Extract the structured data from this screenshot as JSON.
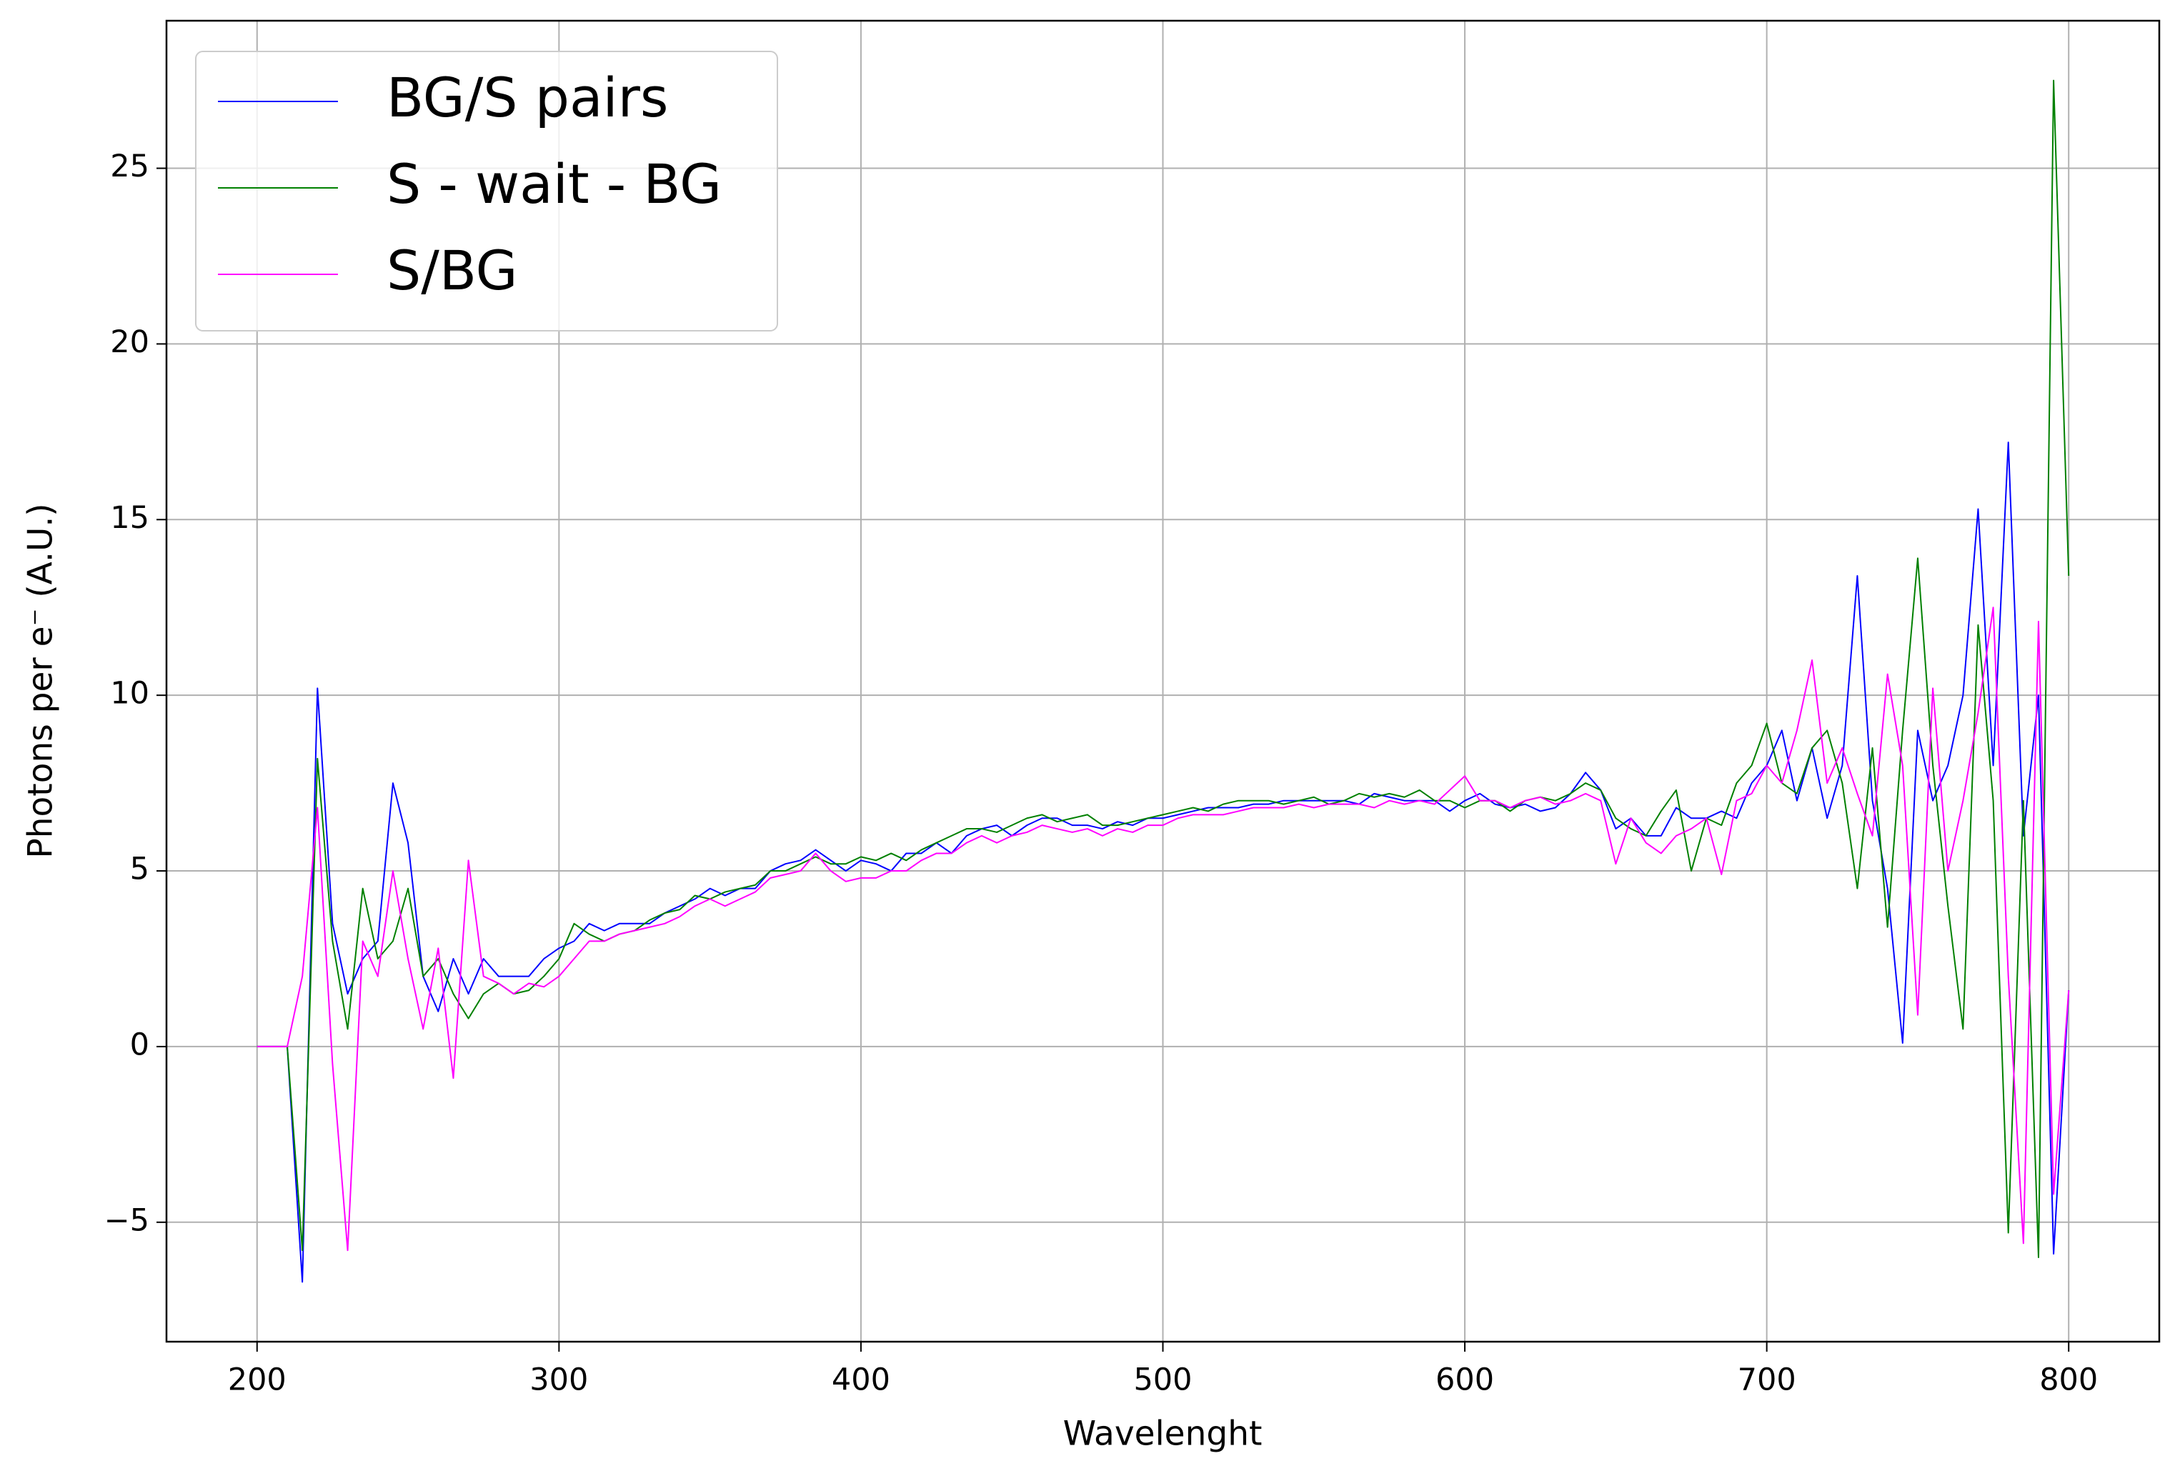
{
  "chart_data": {
    "type": "line",
    "xlabel": "Wavelenght",
    "ylabel": "Photons per e⁻  (A.U.)",
    "xlim": [
      170,
      830
    ],
    "ylim": [
      -8.4,
      29.2
    ],
    "xticks": [
      200,
      300,
      400,
      500,
      600,
      700,
      800
    ],
    "yticks": [
      {
        "value": -5,
        "label": "−5"
      },
      0,
      5,
      10,
      15,
      20,
      25
    ],
    "grid": true,
    "legend": "upper left",
    "x": [
      200,
      205,
      210,
      215,
      220,
      225,
      230,
      235,
      240,
      245,
      250,
      255,
      260,
      265,
      270,
      275,
      280,
      285,
      290,
      295,
      300,
      305,
      310,
      315,
      320,
      325,
      330,
      335,
      340,
      345,
      350,
      355,
      360,
      365,
      370,
      375,
      380,
      385,
      390,
      395,
      400,
      405,
      410,
      415,
      420,
      425,
      430,
      435,
      440,
      445,
      450,
      455,
      460,
      465,
      470,
      475,
      480,
      485,
      490,
      495,
      500,
      505,
      510,
      515,
      520,
      525,
      530,
      535,
      540,
      545,
      550,
      555,
      560,
      565,
      570,
      575,
      580,
      585,
      590,
      595,
      600,
      605,
      610,
      615,
      620,
      625,
      630,
      635,
      640,
      645,
      650,
      655,
      660,
      665,
      670,
      675,
      680,
      685,
      690,
      695,
      700,
      705,
      710,
      715,
      720,
      725,
      730,
      735,
      740,
      745,
      750,
      755,
      760,
      765,
      770,
      775,
      780,
      785,
      790,
      795,
      800
    ],
    "series": [
      {
        "name": "BG/S pairs",
        "color": "#0000ff",
        "values": [
          0,
          0,
          0,
          -6.7,
          10.2,
          3.5,
          1.5,
          2.5,
          3,
          7.5,
          5.8,
          2,
          1,
          2.5,
          1.5,
          2.5,
          2,
          2,
          2,
          2.5,
          2.8,
          3,
          3.5,
          3.3,
          3.5,
          3.5,
          3.5,
          3.8,
          4,
          4.2,
          4.5,
          4.3,
          4.5,
          4.5,
          5,
          5.2,
          5.3,
          5.6,
          5.3,
          5,
          5.3,
          5.2,
          5,
          5.5,
          5.5,
          5.8,
          5.5,
          6,
          6.2,
          6.3,
          6,
          6.3,
          6.5,
          6.5,
          6.3,
          6.3,
          6.2,
          6.4,
          6.3,
          6.5,
          6.5,
          6.6,
          6.7,
          6.8,
          6.8,
          6.8,
          6.9,
          6.9,
          7,
          7,
          7,
          7,
          7,
          6.9,
          7.2,
          7.1,
          7,
          7,
          7,
          6.7,
          7,
          7.2,
          6.9,
          6.8,
          6.9,
          6.7,
          6.8,
          7.2,
          7.8,
          7.3,
          6.2,
          6.5,
          6,
          6,
          6.8,
          6.5,
          6.5,
          6.7,
          6.5,
          7.5,
          8,
          9,
          7,
          8.5,
          6.5,
          8,
          13.4,
          7,
          4.5,
          0.1,
          9,
          7,
          8,
          10,
          15.3,
          8,
          17.2,
          6,
          10,
          -5.9,
          1.6
        ]
      },
      {
        "name": "S - wait - BG",
        "color": "#008000",
        "values": [
          0,
          0,
          0,
          -5.8,
          8.2,
          3,
          0.5,
          4.5,
          2.5,
          3,
          4.5,
          2,
          2.5,
          1.5,
          0.8,
          1.5,
          1.8,
          1.5,
          1.6,
          2,
          2.5,
          3.5,
          3.2,
          3,
          3.2,
          3.3,
          3.6,
          3.8,
          3.9,
          4.3,
          4.2,
          4.4,
          4.5,
          4.6,
          5,
          5,
          5.2,
          5.4,
          5.2,
          5.2,
          5.4,
          5.3,
          5.5,
          5.3,
          5.6,
          5.8,
          6,
          6.2,
          6.2,
          6.1,
          6.3,
          6.5,
          6.6,
          6.4,
          6.5,
          6.6,
          6.3,
          6.3,
          6.4,
          6.5,
          6.6,
          6.7,
          6.8,
          6.7,
          6.9,
          7,
          7,
          7,
          6.9,
          7,
          7.1,
          6.9,
          7,
          7.2,
          7.1,
          7.2,
          7.1,
          7.3,
          7,
          7,
          6.8,
          7,
          7,
          6.7,
          7,
          7.1,
          7,
          7.2,
          7.5,
          7.3,
          6.5,
          6.2,
          6,
          6.7,
          7.3,
          5,
          6.5,
          6.3,
          7.5,
          8,
          9.2,
          7.5,
          7.2,
          8.5,
          9,
          7.5,
          4.5,
          8.5,
          3.4,
          9,
          13.9,
          8,
          4,
          0.5,
          12,
          7,
          -5.3,
          7,
          -6,
          27.5,
          13.4
        ]
      },
      {
        "name": "S/BG",
        "color": "#ff00ff",
        "values": [
          0,
          0,
          0,
          2,
          6.8,
          -0.5,
          -5.8,
          3,
          2,
          5,
          2.5,
          0.5,
          2.8,
          -0.9,
          5.3,
          2,
          1.8,
          1.5,
          1.8,
          1.7,
          2,
          2.5,
          3,
          3,
          3.2,
          3.3,
          3.4,
          3.5,
          3.7,
          4,
          4.2,
          4,
          4.2,
          4.4,
          4.8,
          4.9,
          5,
          5.5,
          5,
          4.7,
          4.8,
          4.8,
          5,
          5,
          5.3,
          5.5,
          5.5,
          5.8,
          6,
          5.8,
          6,
          6.1,
          6.3,
          6.2,
          6.1,
          6.2,
          6,
          6.2,
          6.1,
          6.3,
          6.3,
          6.5,
          6.6,
          6.6,
          6.6,
          6.7,
          6.8,
          6.8,
          6.8,
          6.9,
          6.8,
          6.9,
          6.9,
          6.9,
          6.8,
          7,
          6.9,
          7,
          6.9,
          7.3,
          7.7,
          7,
          7,
          6.8,
          7,
          7.1,
          6.9,
          7,
          7.2,
          7,
          5.2,
          6.5,
          5.8,
          5.5,
          6,
          6.2,
          6.5,
          4.9,
          7,
          7.2,
          8,
          7.5,
          9,
          11,
          7.5,
          8.5,
          7.2,
          6,
          10.6,
          8,
          0.9,
          10.2,
          5,
          7,
          9.5,
          12.5,
          2,
          -5.6,
          12.1,
          -4.2,
          1.6
        ]
      }
    ]
  }
}
